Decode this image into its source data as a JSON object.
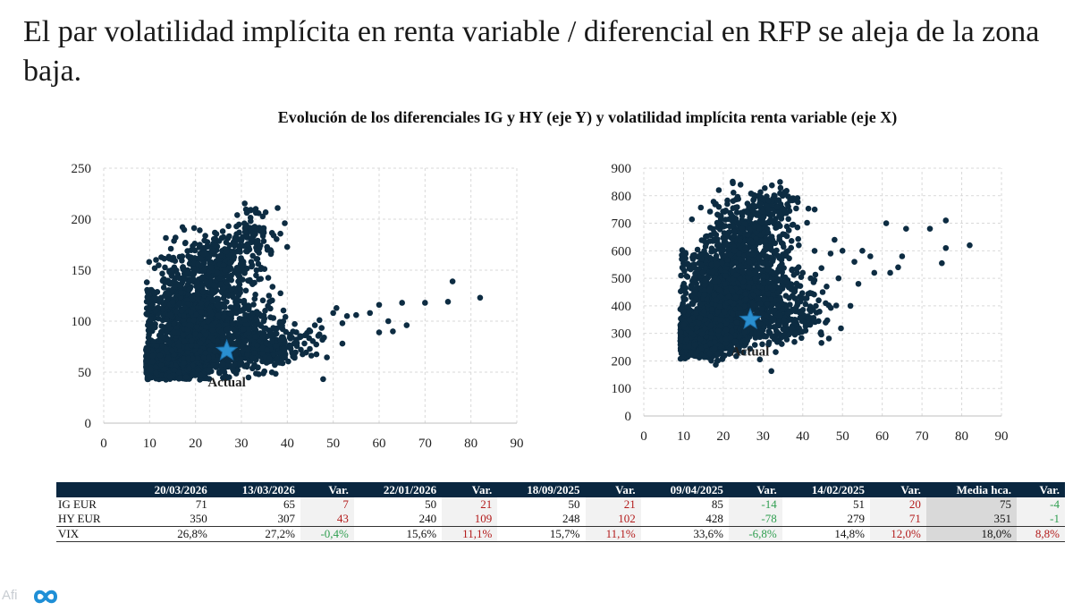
{
  "headline": "El par volatilidad implícita en renta variable / diferencial en RFP se aleja de la zona baja.",
  "subtitle": "Evolución de los diferenciales IG y HY (eje Y) y volatilidad implícita renta variable (eje X)",
  "logo_text": "Afi",
  "colors": {
    "dots": "#0d2c42",
    "star": "#2a8fd0",
    "header_bg": "#0a2740",
    "positive": "#b31b1b",
    "negative": "#2e9e4f"
  },
  "chart_data": [
    {
      "type": "scatter",
      "title": "",
      "xlabel": "",
      "ylabel": "",
      "xlim": [
        0,
        90
      ],
      "ylim": [
        0,
        250
      ],
      "xticks": [
        "0",
        "10",
        "20",
        "30",
        "40",
        "50",
        "60",
        "70",
        "80",
        "90"
      ],
      "yticks": [
        "0",
        "50",
        "100",
        "150",
        "200",
        "250"
      ],
      "grid": true,
      "actual": {
        "x": 26.8,
        "y": 71,
        "label": "Actual"
      },
      "outliers": [
        [
          76,
          139
        ],
        [
          82,
          123
        ],
        [
          75,
          119
        ],
        [
          70,
          118
        ],
        [
          65,
          118
        ],
        [
          60,
          116
        ],
        [
          58,
          108
        ],
        [
          55,
          106
        ],
        [
          53,
          105
        ],
        [
          52,
          98
        ],
        [
          50,
          108
        ],
        [
          47,
          101
        ],
        [
          46,
          96
        ],
        [
          45,
          90
        ],
        [
          43,
          85
        ],
        [
          42,
          82
        ],
        [
          41,
          84
        ],
        [
          47,
          87
        ],
        [
          52,
          78
        ],
        [
          60,
          89
        ],
        [
          62,
          100
        ],
        [
          63,
          90
        ],
        [
          66,
          96
        ],
        [
          48,
          84
        ]
      ],
      "clusters": [
        {
          "cx": 14,
          "cy": 58,
          "sx": 4,
          "sy": 7,
          "n": 900
        },
        {
          "cx": 19,
          "cy": 67,
          "sx": 4.5,
          "sy": 10,
          "n": 600
        },
        {
          "cx": 17,
          "cy": 105,
          "sx": 4.5,
          "sy": 22,
          "n": 550
        },
        {
          "cx": 24,
          "cy": 150,
          "sx": 5,
          "sy": 18,
          "n": 420
        },
        {
          "cx": 28,
          "cy": 90,
          "sx": 6,
          "sy": 18,
          "n": 480
        },
        {
          "cx": 32,
          "cy": 190,
          "sx": 2.5,
          "sy": 10,
          "n": 80
        },
        {
          "cx": 35,
          "cy": 72,
          "sx": 5,
          "sy": 10,
          "n": 220
        }
      ]
    },
    {
      "type": "scatter",
      "title": "",
      "xlabel": "",
      "ylabel": "",
      "xlim": [
        0,
        90
      ],
      "ylim": [
        0,
        900
      ],
      "xticks": [
        "0",
        "10",
        "20",
        "30",
        "40",
        "50",
        "60",
        "70",
        "80",
        "90"
      ],
      "yticks": [
        "0",
        "100",
        "200",
        "300",
        "400",
        "500",
        "600",
        "700",
        "800",
        "900"
      ],
      "grid": true,
      "actual": {
        "x": 26.8,
        "y": 350,
        "label": "Actual"
      },
      "outliers": [
        [
          76,
          710
        ],
        [
          82,
          620
        ],
        [
          72,
          680
        ],
        [
          76,
          610
        ],
        [
          75,
          555
        ],
        [
          66,
          680
        ],
        [
          64,
          540
        ],
        [
          65,
          580
        ],
        [
          61,
          700
        ],
        [
          62,
          520
        ],
        [
          58,
          520
        ],
        [
          57,
          580
        ],
        [
          53,
          560
        ],
        [
          54,
          480
        ],
        [
          52,
          400
        ],
        [
          50,
          600
        ],
        [
          48,
          640
        ],
        [
          47,
          590
        ],
        [
          46,
          470
        ],
        [
          44,
          420
        ],
        [
          45,
          450
        ],
        [
          43,
          750
        ],
        [
          42,
          500
        ],
        [
          40,
          520
        ],
        [
          49,
          500
        ],
        [
          55,
          600
        ],
        [
          42,
          380
        ],
        [
          38,
          300
        ],
        [
          39,
          620
        ]
      ],
      "clusters": [
        {
          "cx": 14,
          "cy": 285,
          "sx": 4,
          "sy": 30,
          "n": 900
        },
        {
          "cx": 19,
          "cy": 320,
          "sx": 4.5,
          "sy": 45,
          "n": 600
        },
        {
          "cx": 18,
          "cy": 460,
          "sx": 4.5,
          "sy": 75,
          "n": 550
        },
        {
          "cx": 26,
          "cy": 650,
          "sx": 5,
          "sy": 70,
          "n": 420
        },
        {
          "cx": 28,
          "cy": 440,
          "sx": 6,
          "sy": 75,
          "n": 480
        },
        {
          "cx": 33,
          "cy": 770,
          "sx": 3,
          "sy": 30,
          "n": 80
        },
        {
          "cx": 35,
          "cy": 360,
          "sx": 5,
          "sy": 50,
          "n": 200
        }
      ]
    }
  ],
  "table": {
    "headers": [
      "",
      "20/03/2026",
      "13/03/2026",
      "Var.",
      "22/01/2026",
      "Var.",
      "18/09/2025",
      "Var.",
      "09/04/2025",
      "Var.",
      "14/02/2025",
      "Var.",
      "Media hca.",
      "Var."
    ],
    "rows": [
      {
        "label": "IG EUR",
        "cells": [
          "71",
          "65",
          "7",
          "50",
          "21",
          "50",
          "21",
          "85",
          "-14",
          "51",
          "20",
          "75",
          "-4"
        ]
      },
      {
        "label": "HY EUR",
        "cells": [
          "350",
          "307",
          "43",
          "240",
          "109",
          "248",
          "102",
          "428",
          "-78",
          "279",
          "71",
          "351",
          "-1"
        ]
      },
      {
        "label": "VIX",
        "cells": [
          "26,8%",
          "27,2%",
          "-0,4%",
          "15,6%",
          "11,1%",
          "15,7%",
          "11,1%",
          "33,6%",
          "-6,8%",
          "14,8%",
          "12,0%",
          "18,0%",
          "8,8%"
        ]
      }
    ]
  }
}
